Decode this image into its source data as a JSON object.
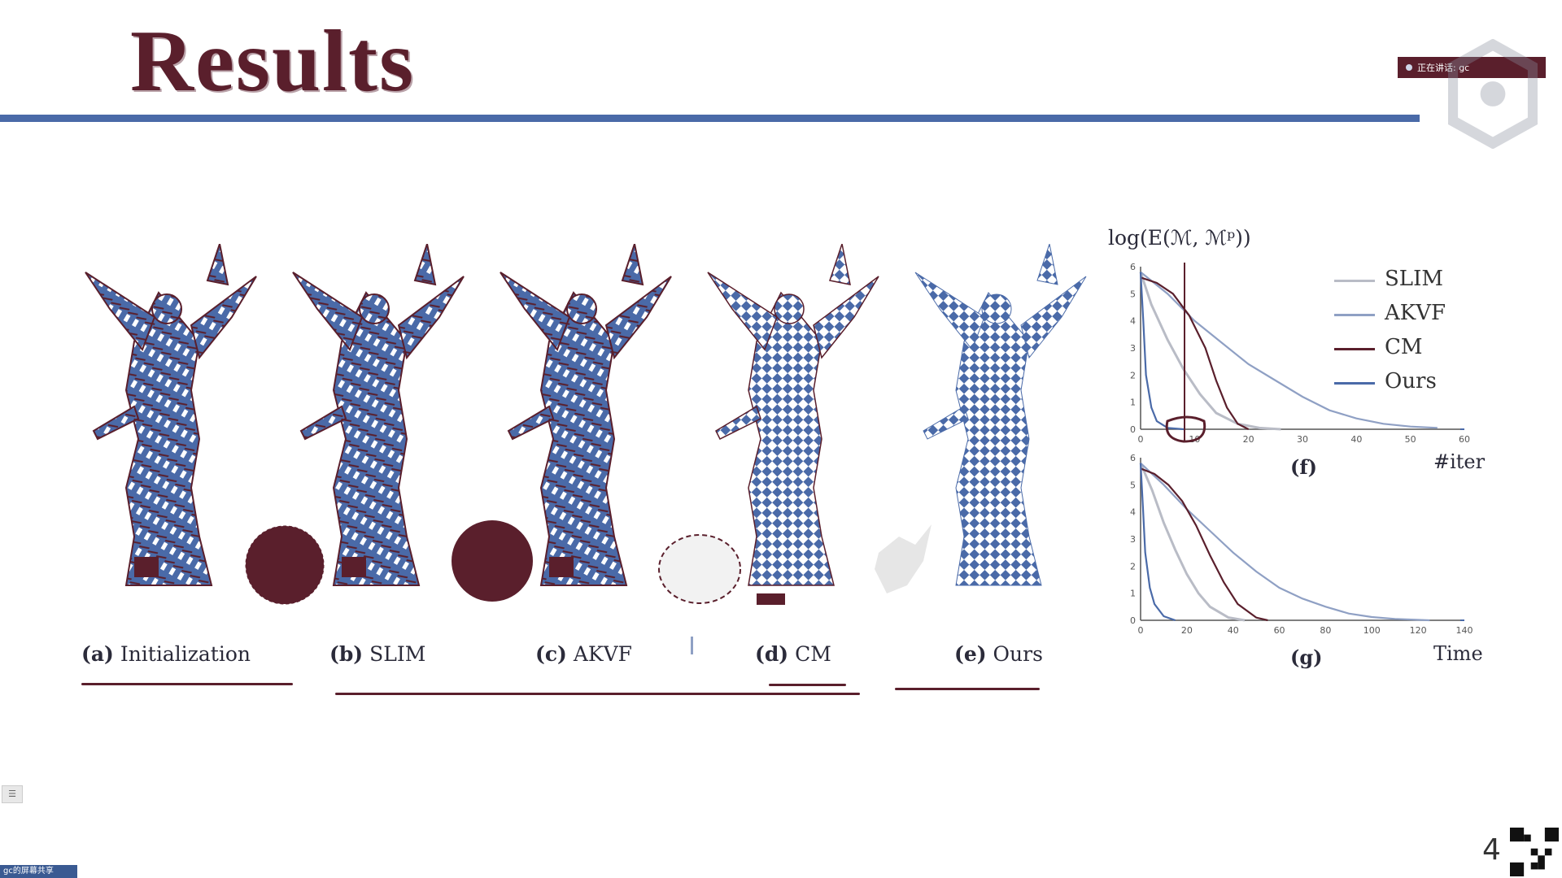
{
  "slide": {
    "title": "Results",
    "page_number": "4",
    "share_banner": "正在讲话: gc",
    "bottom_tag": "gc的屏幕共享",
    "side_button": "☰"
  },
  "figure": {
    "captions": [
      {
        "letter": "(a)",
        "text": "Initialization"
      },
      {
        "letter": "(b)",
        "text": "SLIM"
      },
      {
        "letter": "(c)",
        "text": "AKVF"
      },
      {
        "letter": "(d)",
        "text": "CM"
      },
      {
        "letter": "(e)",
        "text": "Ours"
      }
    ],
    "plot_title": "log(E(ℳ, ℳᵖ))",
    "legend": [
      "SLIM",
      "AKVF",
      "CM",
      "Ours"
    ],
    "plot_f_label": "(f)",
    "plot_g_label": "(g)",
    "plot_f_xlabel": "#iter",
    "plot_g_xlabel": "Time",
    "colors": {
      "accent_dark": "#5a1f2c",
      "accent_blue": "#4a6aa8",
      "slim": "#b9bcc6",
      "akvf": "#8fa0c4",
      "cm": "#5a1f2c",
      "ours": "#4a6aa8"
    }
  },
  "chart_data": [
    {
      "type": "line",
      "label": "(f)",
      "xlabel": "#iter",
      "ylabel": "log(E(ℳ, ℳᵖ))",
      "xlim": [
        0,
        60
      ],
      "ylim": [
        0,
        6
      ],
      "xticks": [
        0,
        10,
        20,
        30,
        40,
        50,
        60
      ],
      "yticks": [
        0,
        1,
        2,
        3,
        4,
        5,
        6
      ],
      "series": [
        {
          "name": "SLIM",
          "x": [
            0,
            2,
            5,
            8,
            11,
            14,
            18,
            22,
            26
          ],
          "y": [
            5.8,
            4.6,
            3.3,
            2.2,
            1.3,
            0.6,
            0.2,
            0.05,
            0.0
          ]
        },
        {
          "name": "AKVF",
          "x": [
            0,
            5,
            10,
            15,
            20,
            25,
            30,
            35,
            40,
            45,
            50,
            55
          ],
          "y": [
            5.8,
            5.0,
            4.0,
            3.2,
            2.4,
            1.8,
            1.2,
            0.7,
            0.4,
            0.2,
            0.1,
            0.05
          ]
        },
        {
          "name": "CM",
          "x": [
            0,
            3,
            6,
            9,
            12,
            14,
            16,
            18,
            20
          ],
          "y": [
            5.6,
            5.4,
            5.0,
            4.2,
            3.0,
            1.8,
            0.8,
            0.2,
            0.0
          ]
        },
        {
          "name": "Ours",
          "x": [
            0,
            0.5,
            1,
            2,
            3,
            5,
            8
          ],
          "y": [
            5.8,
            4.0,
            2.0,
            0.8,
            0.3,
            0.05,
            0.0
          ]
        }
      ]
    },
    {
      "type": "line",
      "label": "(g)",
      "xlabel": "Time",
      "xlim": [
        0,
        140
      ],
      "ylim": [
        0,
        6
      ],
      "xticks": [
        0,
        20,
        40,
        60,
        80,
        100,
        120,
        140
      ],
      "yticks": [
        0,
        1,
        2,
        3,
        4,
        5,
        6
      ],
      "series": [
        {
          "name": "SLIM",
          "x": [
            0,
            5,
            10,
            15,
            20,
            25,
            30,
            38,
            45
          ],
          "y": [
            5.8,
            4.8,
            3.6,
            2.6,
            1.7,
            1.0,
            0.5,
            0.1,
            0.0
          ]
        },
        {
          "name": "AKVF",
          "x": [
            0,
            10,
            20,
            30,
            40,
            50,
            60,
            70,
            80,
            90,
            100,
            110,
            125
          ],
          "y": [
            5.8,
            5.0,
            4.1,
            3.3,
            2.5,
            1.8,
            1.2,
            0.8,
            0.5,
            0.25,
            0.12,
            0.05,
            0.0
          ]
        },
        {
          "name": "CM",
          "x": [
            0,
            6,
            12,
            18,
            24,
            30,
            36,
            42,
            50,
            55
          ],
          "y": [
            5.6,
            5.4,
            5.0,
            4.4,
            3.5,
            2.4,
            1.4,
            0.6,
            0.1,
            0.0
          ]
        },
        {
          "name": "Ours",
          "x": [
            0,
            1,
            2,
            4,
            6,
            10,
            15
          ],
          "y": [
            5.8,
            4.2,
            2.5,
            1.2,
            0.6,
            0.15,
            0.0
          ]
        }
      ]
    }
  ]
}
